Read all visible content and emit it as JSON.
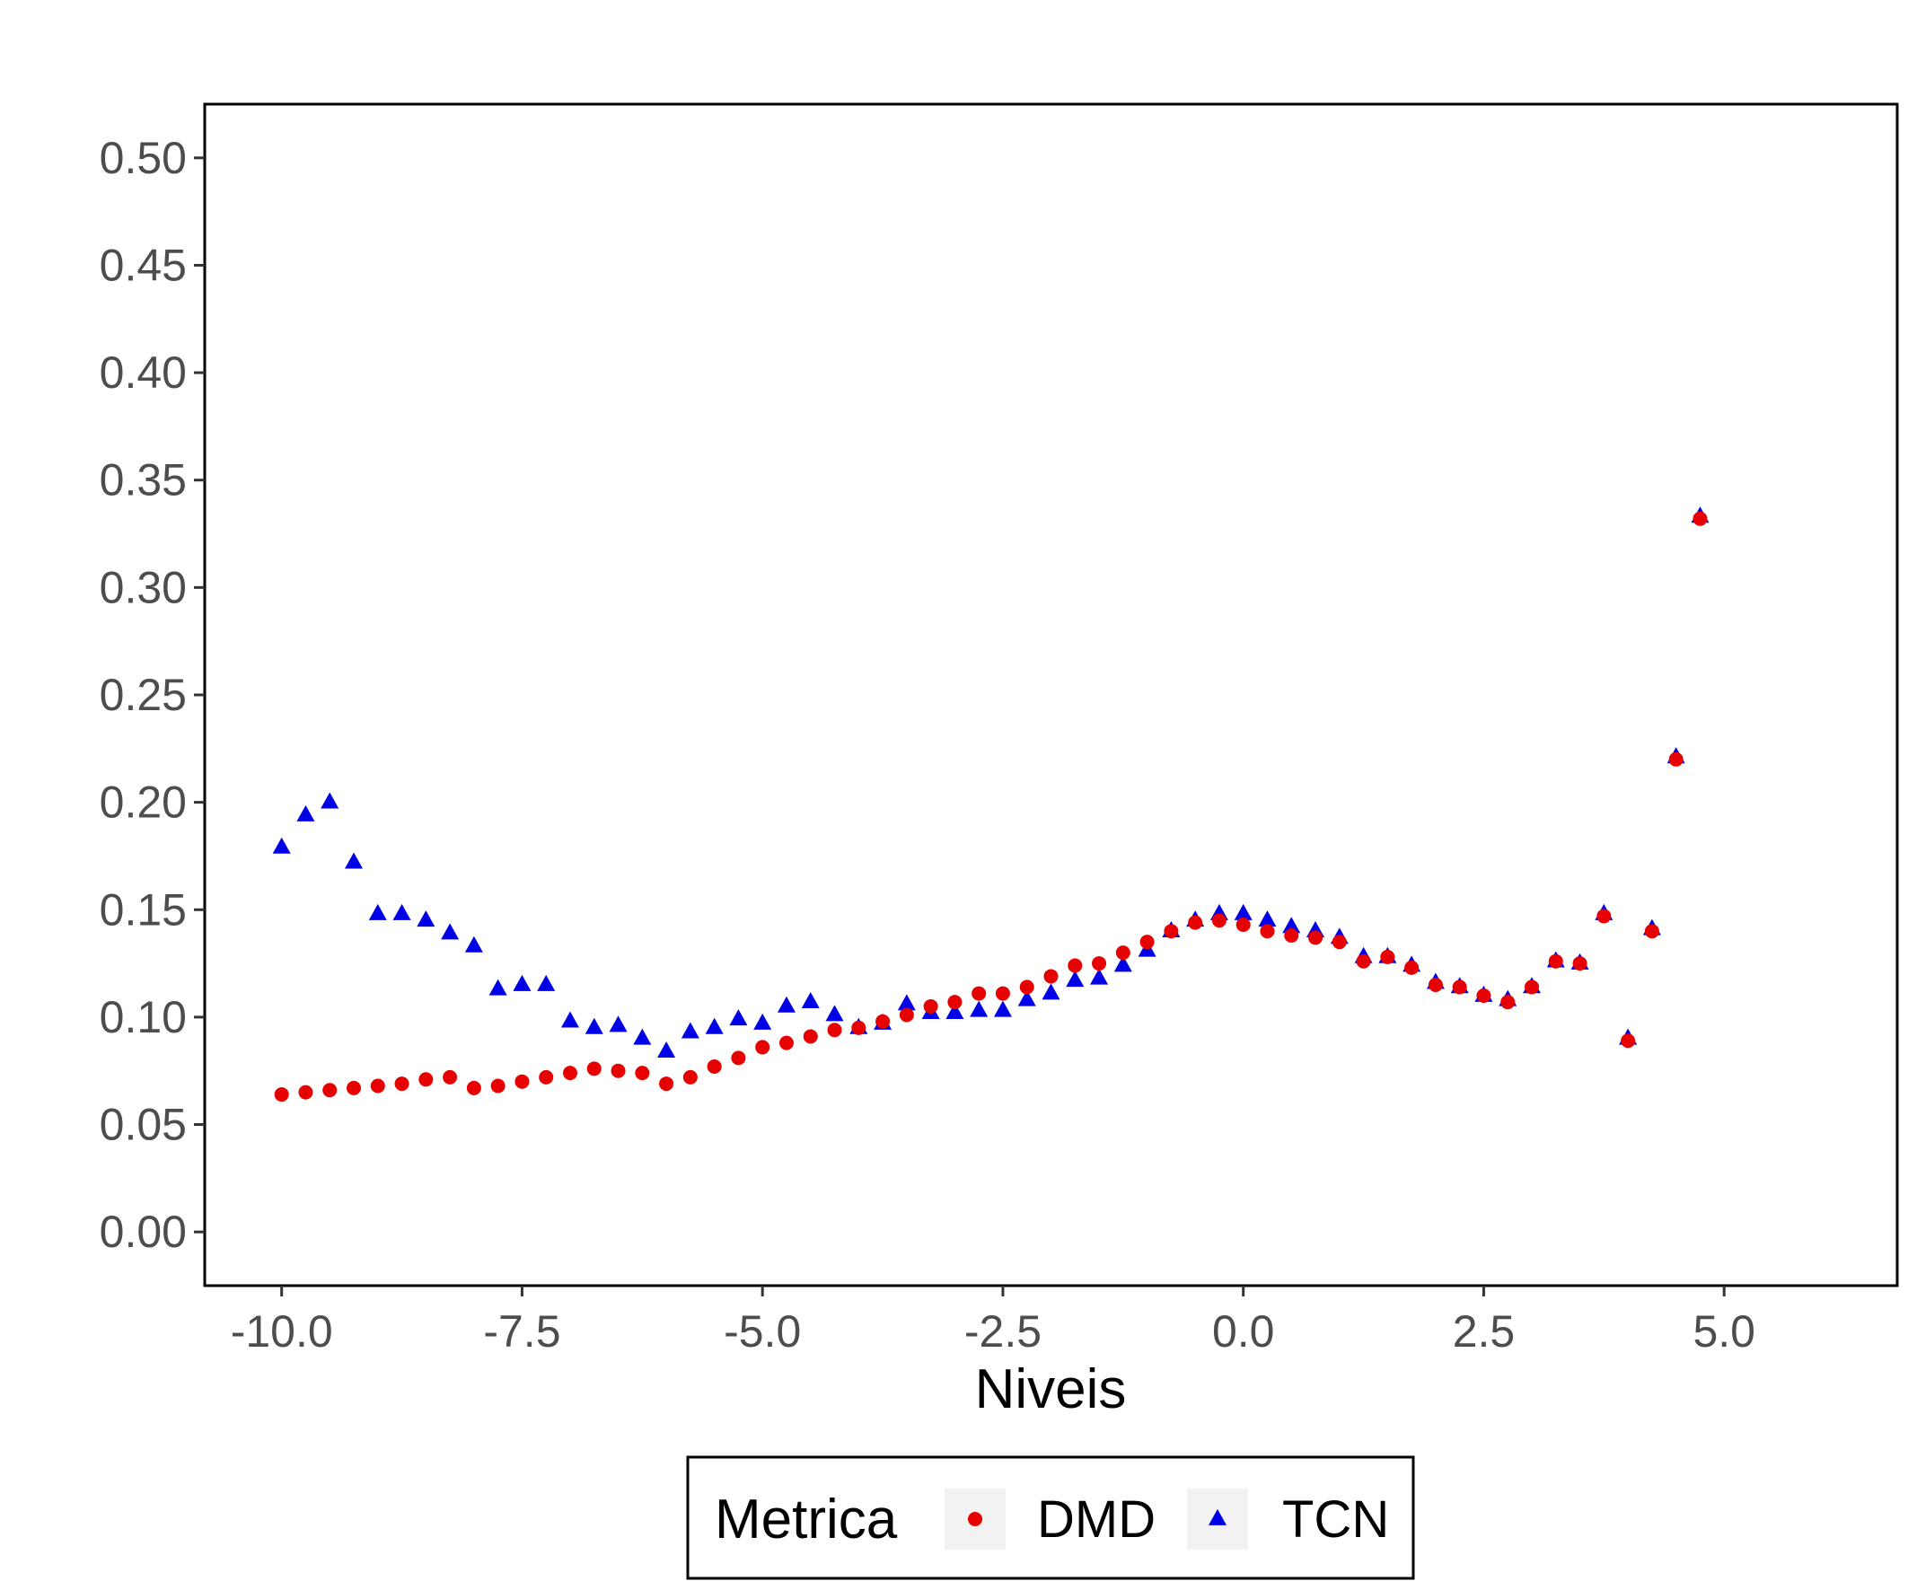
{
  "chart_data": {
    "type": "scatter",
    "title": "",
    "xlabel": "Niveis",
    "ylabel": "",
    "xlim": [
      -10.8,
      6.8
    ],
    "ylim": [
      -0.025,
      0.525
    ],
    "x_ticks": [
      "-10.0",
      "-7.5",
      "-5.0",
      "-2.5",
      "0.0",
      "2.5",
      "5.0"
    ],
    "y_ticks": [
      "0.00",
      "0.05",
      "0.10",
      "0.15",
      "0.20",
      "0.25",
      "0.30",
      "0.35",
      "0.40",
      "0.45",
      "0.50"
    ],
    "grid": false,
    "legend": {
      "title": "Metrica",
      "position": "bottom"
    },
    "series": [
      {
        "name": "DMD",
        "marker": "circle",
        "color": "#e60000",
        "points": [
          [
            -10.0,
            0.064
          ],
          [
            -9.75,
            0.065
          ],
          [
            -9.5,
            0.066
          ],
          [
            -9.25,
            0.067
          ],
          [
            -9.0,
            0.068
          ],
          [
            -8.75,
            0.069
          ],
          [
            -8.5,
            0.071
          ],
          [
            -8.25,
            0.072
          ],
          [
            -8.0,
            0.067
          ],
          [
            -7.75,
            0.068
          ],
          [
            -7.5,
            0.07
          ],
          [
            -7.25,
            0.072
          ],
          [
            -7.0,
            0.074
          ],
          [
            -6.75,
            0.076
          ],
          [
            -6.5,
            0.075
          ],
          [
            -6.25,
            0.074
          ],
          [
            -6.0,
            0.069
          ],
          [
            -5.75,
            0.072
          ],
          [
            -5.5,
            0.077
          ],
          [
            -5.25,
            0.081
          ],
          [
            -5.0,
            0.086
          ],
          [
            -4.75,
            0.088
          ],
          [
            -4.5,
            0.091
          ],
          [
            -4.25,
            0.094
          ],
          [
            -4.0,
            0.095
          ],
          [
            -3.75,
            0.098
          ],
          [
            -3.5,
            0.101
          ],
          [
            -3.25,
            0.105
          ],
          [
            -3.0,
            0.107
          ],
          [
            -2.75,
            0.111
          ],
          [
            -2.5,
            0.111
          ],
          [
            -2.25,
            0.114
          ],
          [
            -2.0,
            0.119
          ],
          [
            -1.75,
            0.124
          ],
          [
            -1.5,
            0.125
          ],
          [
            -1.25,
            0.13
          ],
          [
            -1.0,
            0.135
          ],
          [
            -0.75,
            0.14
          ],
          [
            -0.5,
            0.144
          ],
          [
            -0.25,
            0.145
          ],
          [
            0.0,
            0.143
          ],
          [
            0.25,
            0.14
          ],
          [
            0.5,
            0.138
          ],
          [
            0.75,
            0.137
          ],
          [
            1.0,
            0.135
          ],
          [
            1.25,
            0.126
          ],
          [
            1.5,
            0.128
          ],
          [
            1.75,
            0.123
          ],
          [
            2.0,
            0.115
          ],
          [
            2.25,
            0.114
          ],
          [
            2.5,
            0.11
          ],
          [
            2.75,
            0.107
          ],
          [
            3.0,
            0.114
          ],
          [
            3.25,
            0.126
          ],
          [
            3.5,
            0.125
          ],
          [
            3.75,
            0.147
          ],
          [
            4.0,
            0.089
          ],
          [
            4.25,
            0.14
          ],
          [
            4.5,
            0.22
          ],
          [
            4.75,
            0.332
          ]
        ]
      },
      {
        "name": "TCN",
        "marker": "triangle",
        "color": "#0000e6",
        "points": [
          [
            -10.0,
            0.179
          ],
          [
            -9.75,
            0.194
          ],
          [
            -9.5,
            0.2
          ],
          [
            -9.25,
            0.172
          ],
          [
            -9.0,
            0.148
          ],
          [
            -8.75,
            0.148
          ],
          [
            -8.5,
            0.145
          ],
          [
            -8.25,
            0.139
          ],
          [
            -8.0,
            0.133
          ],
          [
            -7.75,
            0.113
          ],
          [
            -7.5,
            0.115
          ],
          [
            -7.25,
            0.115
          ],
          [
            -7.0,
            0.098
          ],
          [
            -6.75,
            0.095
          ],
          [
            -6.5,
            0.096
          ],
          [
            -6.25,
            0.09
          ],
          [
            -6.0,
            0.084
          ],
          [
            -5.75,
            0.093
          ],
          [
            -5.5,
            0.095
          ],
          [
            -5.25,
            0.099
          ],
          [
            -5.0,
            0.097
          ],
          [
            -4.75,
            0.105
          ],
          [
            -4.5,
            0.107
          ],
          [
            -4.25,
            0.101
          ],
          [
            -4.0,
            0.095
          ],
          [
            -3.75,
            0.097
          ],
          [
            -3.5,
            0.106
          ],
          [
            -3.25,
            0.102
          ],
          [
            -3.0,
            0.102
          ],
          [
            -2.75,
            0.103
          ],
          [
            -2.5,
            0.103
          ],
          [
            -2.25,
            0.108
          ],
          [
            -2.0,
            0.111
          ],
          [
            -1.75,
            0.117
          ],
          [
            -1.5,
            0.118
          ],
          [
            -1.25,
            0.124
          ],
          [
            -1.0,
            0.131
          ],
          [
            -0.75,
            0.14
          ],
          [
            -0.5,
            0.145
          ],
          [
            -0.25,
            0.148
          ],
          [
            0.0,
            0.148
          ],
          [
            0.25,
            0.145
          ],
          [
            0.5,
            0.142
          ],
          [
            0.75,
            0.14
          ],
          [
            1.0,
            0.137
          ],
          [
            1.25,
            0.128
          ],
          [
            1.5,
            0.128
          ],
          [
            1.75,
            0.124
          ],
          [
            2.0,
            0.116
          ],
          [
            2.25,
            0.114
          ],
          [
            2.5,
            0.11
          ],
          [
            2.75,
            0.108
          ],
          [
            3.0,
            0.114
          ],
          [
            3.25,
            0.126
          ],
          [
            3.5,
            0.125
          ],
          [
            3.75,
            0.148
          ],
          [
            4.0,
            0.09
          ],
          [
            4.25,
            0.141
          ],
          [
            4.5,
            0.221
          ],
          [
            4.75,
            0.333
          ]
        ]
      }
    ]
  }
}
